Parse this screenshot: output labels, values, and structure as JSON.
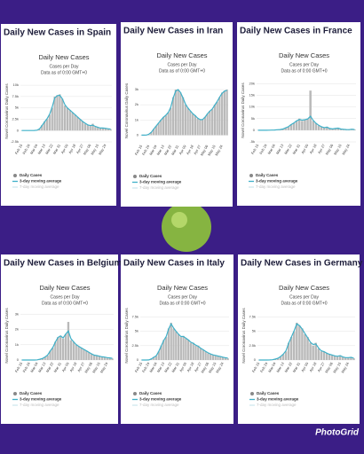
{
  "watermark": "PhotoGrid",
  "chart_data": [
    {
      "type": "bar",
      "heading": "Daily New Cases in Spain",
      "title": "Daily New Cases",
      "subtitle": "Cases per Day",
      "note": "Data as of 0:00 GMT+0",
      "ylabel": "Novel Coronavirus Daily Cases",
      "categories": [
        "Feb 15",
        null,
        null,
        "Feb 24",
        null,
        null,
        "Mar 04",
        null,
        null,
        "Mar 13",
        null,
        null,
        "Mar 22",
        null,
        null,
        "Mar 31",
        null,
        null,
        "Apr 09",
        null,
        null,
        "Apr 18",
        null,
        null,
        "Apr 27",
        null,
        null,
        "May 06",
        null,
        null,
        "May 15",
        null,
        null,
        "May 24",
        null,
        null
      ],
      "ylim": [
        -2500,
        11000
      ],
      "yticks": [
        {
          "value": -2500,
          "label": "-2.5k"
        },
        0,
        {
          "value": 2500,
          "label": "2.5k"
        },
        {
          "value": 5000,
          "label": "5k"
        },
        {
          "value": 7500,
          "label": "7.5k"
        },
        {
          "value": 10000,
          "label": "10k"
        }
      ],
      "grid": true,
      "series": [
        {
          "name": "Daily Cases",
          "type": "bar",
          "color": "#b9b9b9",
          "values": [
            0,
            0,
            0,
            0,
            5,
            30,
            80,
            400,
            1200,
            2000,
            2500,
            3500,
            5000,
            7500,
            7800,
            8000,
            7000,
            5500,
            5000,
            4500,
            4000,
            3500,
            3000,
            2500,
            2000,
            1500,
            1200,
            1000,
            1500,
            800,
            700,
            500,
            600,
            500,
            400,
            300
          ]
        },
        {
          "name": "3-day moving average",
          "type": "line",
          "color": "#3fb0c8",
          "values": [
            0,
            0,
            0,
            0,
            5,
            30,
            90,
            350,
            1100,
            1900,
            2600,
            3600,
            5200,
            7200,
            7700,
            7800,
            7000,
            5700,
            5000,
            4500,
            4000,
            3500,
            3000,
            2500,
            2000,
            1600,
            1250,
            1100,
            1200,
            900,
            700,
            550,
            550,
            500,
            400,
            320
          ]
        },
        {
          "name": "7-day moving average",
          "type": "line",
          "color": "#cfe8ee",
          "hidden": true
        }
      ]
    },
    {
      "type": "bar",
      "heading": "Daily New Cases in Iran",
      "title": "Daily New Cases",
      "subtitle": "Cases per Day",
      "note": "Data as of 0:00 GMT+0",
      "ylabel": "Novel Coronavirus Daily Cases",
      "categories": [
        "Feb 15",
        null,
        null,
        "Feb 24",
        null,
        null,
        "Mar 04",
        null,
        null,
        "Mar 13",
        null,
        null,
        "Mar 22",
        null,
        null,
        "Mar 31",
        null,
        null,
        "Apr 09",
        null,
        null,
        "Apr 18",
        null,
        null,
        "Apr 27",
        null,
        null,
        "May 06",
        null,
        null,
        "May 15",
        null,
        null,
        "May 24",
        null,
        null
      ],
      "ylim": [
        -500,
        3700
      ],
      "yticks": [
        0,
        {
          "value": 1000,
          "label": "1k"
        },
        {
          "value": 2000,
          "label": "2k"
        },
        {
          "value": 3000,
          "label": "3k"
        }
      ],
      "grid": true,
      "series": [
        {
          "name": "Daily Cases",
          "type": "bar",
          "color": "#b9b9b9",
          "values": [
            0,
            0,
            10,
            50,
            200,
            400,
            600,
            800,
            1000,
            1200,
            1300,
            1500,
            1800,
            2500,
            3000,
            3000,
            2800,
            2500,
            2000,
            1800,
            1600,
            1400,
            1300,
            1100,
            1000,
            1000,
            1200,
            1400,
            1600,
            1700,
            2000,
            2200,
            2500,
            2800,
            2900,
            3000
          ]
        },
        {
          "name": "3-day moving average",
          "type": "line",
          "color": "#3fb0c8",
          "values": [
            0,
            0,
            10,
            60,
            190,
            400,
            600,
            800,
            1000,
            1180,
            1320,
            1500,
            1850,
            2450,
            2900,
            3000,
            2800,
            2450,
            2050,
            1800,
            1600,
            1420,
            1280,
            1120,
            1020,
            1020,
            1180,
            1400,
            1580,
            1720,
            1980,
            2220,
            2500,
            2750,
            2900,
            2950
          ]
        },
        {
          "name": "7-day moving average",
          "type": "line",
          "color": "#cfe8ee",
          "hidden": true
        }
      ]
    },
    {
      "type": "bar",
      "heading": "Daily New Cases in France",
      "title": "Daily New Cases",
      "subtitle": "Cases per Day",
      "note": "Data as of 0:00 GMT+0",
      "ylabel": "Novel Coronavirus Daily Cases",
      "categories": [
        "Feb 15",
        null,
        null,
        "Feb 24",
        null,
        null,
        "Mar 04",
        null,
        null,
        "Mar 13",
        null,
        null,
        "Mar 22",
        null,
        null,
        "Mar 31",
        null,
        null,
        "Apr 09",
        null,
        null,
        "Apr 18",
        null,
        null,
        "Apr 27",
        null,
        null,
        "May 06",
        null,
        null,
        "May 15",
        null,
        null,
        "May 24",
        null,
        null
      ],
      "ylim": [
        -5000,
        22000
      ],
      "yticks": [
        {
          "value": -5000,
          "label": "-5k"
        },
        0,
        {
          "value": 5000,
          "label": "5k"
        },
        {
          "value": 10000,
          "label": "10k"
        },
        {
          "value": 15000,
          "label": "15k"
        },
        {
          "value": 20000,
          "label": "20k"
        }
      ],
      "grid": true,
      "series": [
        {
          "name": "Daily Cases",
          "type": "bar",
          "color": "#b9b9b9",
          "values": [
            0,
            0,
            0,
            0,
            10,
            50,
            100,
            200,
            300,
            500,
            1000,
            1500,
            2500,
            3000,
            4000,
            5000,
            4000,
            4500,
            5000,
            17000,
            4000,
            3000,
            2000,
            1500,
            1000,
            1500,
            700,
            500,
            800,
            1000,
            500,
            400,
            300,
            200,
            500,
            300
          ]
        },
        {
          "name": "3-day moving average",
          "type": "line",
          "color": "#3fb0c8",
          "values": [
            0,
            0,
            0,
            0,
            10,
            50,
            100,
            200,
            300,
            500,
            1000,
            1500,
            2400,
            3100,
            4000,
            4600,
            4300,
            4500,
            4800,
            6000,
            4200,
            3000,
            2100,
            1500,
            1100,
            1300,
            750,
            550,
            750,
            900,
            500,
            400,
            300,
            250,
            450,
            300
          ]
        },
        {
          "name": "7-day moving average",
          "type": "line",
          "color": "#cfe8ee",
          "hidden": true
        }
      ]
    },
    {
      "type": "bar",
      "heading": "Daily New Cases in Belgium",
      "title": "Daily New Cases",
      "subtitle": "Cases per Day",
      "note": "Data as of 0:00 GMT+0",
      "ylabel": "Novel Coronavirus Daily Cases",
      "categories": [
        "Feb 15",
        null,
        null,
        "Feb 24",
        null,
        null,
        "Mar 04",
        null,
        null,
        "Mar 13",
        null,
        null,
        "Mar 22",
        null,
        null,
        "Mar 31",
        null,
        null,
        "Apr 09",
        null,
        null,
        "Apr 18",
        null,
        null,
        "Apr 27",
        null,
        null,
        "May 06",
        null,
        null,
        "May 15",
        null,
        null,
        "May 24",
        null,
        null
      ],
      "ylim": [
        0,
        3200
      ],
      "yticks": [
        0,
        {
          "value": 1000,
          "label": "1k"
        },
        {
          "value": 2000,
          "label": "2k"
        },
        {
          "value": 3000,
          "label": "3k"
        }
      ],
      "grid": true,
      "series": [
        {
          "name": "Daily Cases",
          "type": "bar",
          "color": "#b9b9b9",
          "values": [
            0,
            0,
            0,
            0,
            0,
            2,
            10,
            50,
            100,
            200,
            300,
            600,
            800,
            1200,
            1500,
            1600,
            1400,
            1700,
            2500,
            1300,
            1200,
            1000,
            900,
            800,
            700,
            600,
            500,
            400,
            300,
            300,
            250,
            200,
            200,
            150,
            150,
            100
          ]
        },
        {
          "name": "3-day moving average",
          "type": "line",
          "color": "#3fb0c8",
          "values": [
            0,
            0,
            0,
            0,
            0,
            2,
            10,
            50,
            100,
            200,
            320,
            580,
            820,
            1180,
            1480,
            1580,
            1450,
            1700,
            1900,
            1400,
            1200,
            1020,
            900,
            800,
            700,
            600,
            500,
            400,
            320,
            290,
            250,
            210,
            190,
            160,
            140,
            110
          ]
        },
        {
          "name": "7-day moving average",
          "type": "line",
          "color": "#cfe8ee",
          "hidden": true
        }
      ]
    },
    {
      "type": "bar",
      "heading": "Daily New Cases in Italy",
      "title": "Daily New Cases",
      "subtitle": "Cases per Day",
      "note": "Data as of 0:00 GMT+0",
      "ylabel": "Novel Coronavirus Daily Cases",
      "categories": [
        "Feb 15",
        null,
        null,
        "Feb 24",
        null,
        null,
        "Mar 04",
        null,
        null,
        "Mar 13",
        null,
        null,
        "Mar 22",
        null,
        null,
        "Mar 31",
        null,
        null,
        "Apr 09",
        null,
        null,
        "Apr 18",
        null,
        null,
        "Apr 27",
        null,
        null,
        "May 06",
        null,
        null,
        "May 15",
        null,
        null,
        "May 24",
        null,
        null
      ],
      "ylim": [
        0,
        8500
      ],
      "yticks": [
        0,
        {
          "value": 2500,
          "label": "2.5k"
        },
        {
          "value": 5000,
          "label": "5k"
        },
        {
          "value": 7500,
          "label": "7.5k"
        }
      ],
      "grid": true,
      "series": [
        {
          "name": "Daily Cases",
          "type": "bar",
          "color": "#b9b9b9",
          "values": [
            0,
            0,
            0,
            10,
            200,
            500,
            700,
            1500,
            2500,
            3500,
            4000,
            5500,
            6500,
            5500,
            5000,
            4500,
            4000,
            4200,
            3800,
            3500,
            3000,
            3000,
            2500,
            2500,
            2000,
            1800,
            1500,
            1200,
            1000,
            900,
            800,
            700,
            600,
            500,
            400,
            300
          ]
        },
        {
          "name": "3-day moving average",
          "type": "line",
          "color": "#3fb0c8",
          "values": [
            0,
            0,
            0,
            10,
            200,
            480,
            750,
            1500,
            2450,
            3400,
            4100,
            5400,
            6300,
            5600,
            5000,
            4500,
            4100,
            4100,
            3800,
            3500,
            3100,
            2900,
            2600,
            2400,
            2050,
            1800,
            1500,
            1250,
            1050,
            900,
            800,
            700,
            600,
            500,
            400,
            320
          ]
        },
        {
          "name": "7-day moving average",
          "type": "line",
          "color": "#cfe8ee",
          "hidden": true
        }
      ]
    },
    {
      "type": "bar",
      "heading": "Daily New Cases in Germany",
      "title": "Daily New Cases",
      "subtitle": "Cases per Day",
      "note": "Data as of 0:00 GMT+0",
      "ylabel": "Novel Coronavirus Daily Cases",
      "categories": [
        "Feb 15",
        null,
        null,
        "Feb 24",
        null,
        null,
        "Mar 04",
        null,
        null,
        "Mar 13",
        null,
        null,
        "Mar 22",
        null,
        null,
        "Mar 31",
        null,
        null,
        "Apr 09",
        null,
        null,
        "Apr 18",
        null,
        null,
        "Apr 27",
        null,
        null,
        "May 06",
        null,
        null,
        "May 15",
        null,
        null,
        "May 24",
        null,
        null
      ],
      "ylim": [
        0,
        8500
      ],
      "yticks": [
        0,
        {
          "value": 2500,
          "label": "2.5k"
        },
        {
          "value": 5000,
          "label": "5k"
        },
        {
          "value": 7500,
          "label": "7.5k"
        }
      ],
      "grid": true,
      "series": [
        {
          "name": "Daily Cases",
          "type": "bar",
          "color": "#b9b9b9",
          "values": [
            0,
            0,
            0,
            0,
            10,
            50,
            150,
            300,
            600,
            1000,
            1500,
            3000,
            4000,
            5000,
            6500,
            6000,
            5500,
            4500,
            4000,
            3000,
            2500,
            3000,
            2000,
            1500,
            1500,
            1200,
            1000,
            900,
            700,
            600,
            800,
            500,
            400,
            400,
            500,
            300
          ]
        },
        {
          "name": "3-day moving average",
          "type": "line",
          "color": "#3fb0c8",
          "values": [
            0,
            0,
            0,
            0,
            10,
            50,
            150,
            300,
            600,
            1000,
            1600,
            2900,
            4000,
            5100,
            6300,
            6000,
            5400,
            4600,
            3900,
            3100,
            2700,
            2800,
            2100,
            1600,
            1450,
            1200,
            1000,
            880,
            720,
            650,
            750,
            520,
            420,
            410,
            470,
            320
          ]
        },
        {
          "name": "7-day moving average",
          "type": "line",
          "color": "#cfe8ee",
          "hidden": true
        }
      ]
    }
  ]
}
